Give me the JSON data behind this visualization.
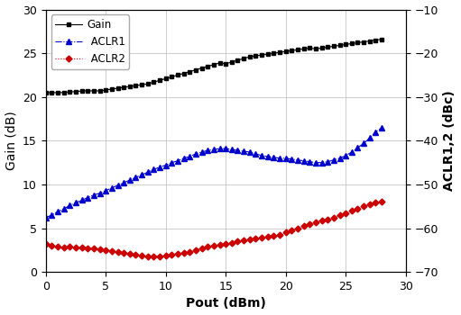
{
  "pout_gain": [
    0,
    0.5,
    1,
    1.5,
    2,
    2.5,
    3,
    3.5,
    4,
    4.5,
    5,
    5.5,
    6,
    6.5,
    7,
    7.5,
    8,
    8.5,
    9,
    9.5,
    10,
    10.5,
    11,
    11.5,
    12,
    12.5,
    13,
    13.5,
    14,
    14.5,
    15,
    15.5,
    16,
    16.5,
    17,
    17.5,
    18,
    18.5,
    19,
    19.5,
    20,
    20.5,
    21,
    21.5,
    22,
    22.5,
    23,
    23.5,
    24,
    24.5,
    25,
    25.5,
    26,
    26.5,
    27,
    27.5,
    28
  ],
  "gain": [
    20.5,
    20.5,
    20.5,
    20.5,
    20.6,
    20.6,
    20.7,
    20.7,
    20.7,
    20.7,
    20.8,
    20.9,
    21.0,
    21.1,
    21.2,
    21.3,
    21.4,
    21.5,
    21.7,
    21.9,
    22.1,
    22.3,
    22.5,
    22.7,
    22.9,
    23.1,
    23.3,
    23.5,
    23.7,
    23.9,
    23.8,
    24.0,
    24.2,
    24.4,
    24.6,
    24.7,
    24.8,
    24.9,
    25.0,
    25.1,
    25.2,
    25.3,
    25.4,
    25.5,
    25.6,
    25.5,
    25.6,
    25.7,
    25.8,
    25.9,
    26.0,
    26.1,
    26.2,
    26.3,
    26.4,
    26.5,
    26.6
  ],
  "pout_aclr1": [
    0,
    0.5,
    1,
    1.5,
    2,
    2.5,
    3,
    3.5,
    4,
    4.5,
    5,
    5.5,
    6,
    6.5,
    7,
    7.5,
    8,
    8.5,
    9,
    9.5,
    10,
    10.5,
    11,
    11.5,
    12,
    12.5,
    13,
    13.5,
    14,
    14.5,
    15,
    15.5,
    16,
    16.5,
    17,
    17.5,
    18,
    18.5,
    19,
    19.5,
    20,
    20.5,
    21,
    21.5,
    22,
    22.5,
    23,
    23.5,
    24,
    24.5,
    25,
    25.5,
    26,
    26.5,
    27,
    27.5,
    28
  ],
  "aclr1": [
    6.2,
    6.5,
    6.9,
    7.2,
    7.6,
    7.9,
    8.2,
    8.5,
    8.8,
    9.0,
    9.3,
    9.6,
    9.9,
    10.2,
    10.5,
    10.8,
    11.1,
    11.4,
    11.7,
    12.0,
    12.2,
    12.5,
    12.7,
    13.0,
    13.2,
    13.5,
    13.7,
    13.9,
    14.0,
    14.1,
    14.1,
    14.0,
    13.9,
    13.8,
    13.7,
    13.5,
    13.3,
    13.2,
    13.1,
    13.0,
    13.0,
    12.9,
    12.8,
    12.7,
    12.6,
    12.5,
    12.5,
    12.6,
    12.8,
    13.0,
    13.3,
    13.7,
    14.2,
    14.7,
    15.3,
    16.0,
    16.5
  ],
  "pout_aclr2": [
    0,
    0.5,
    1,
    1.5,
    2,
    2.5,
    3,
    3.5,
    4,
    4.5,
    5,
    5.5,
    6,
    6.5,
    7,
    7.5,
    8,
    8.5,
    9,
    9.5,
    10,
    10.5,
    11,
    11.5,
    12,
    12.5,
    13,
    13.5,
    14,
    14.5,
    15,
    15.5,
    16,
    16.5,
    17,
    17.5,
    18,
    18.5,
    19,
    19.5,
    20,
    20.5,
    21,
    21.5,
    22,
    22.5,
    23,
    23.5,
    24,
    24.5,
    25,
    25.5,
    26,
    26.5,
    27,
    27.5,
    28
  ],
  "aclr2": [
    3.2,
    3.0,
    2.9,
    2.8,
    2.9,
    2.8,
    2.8,
    2.7,
    2.7,
    2.6,
    2.5,
    2.4,
    2.3,
    2.2,
    2.1,
    2.0,
    1.9,
    1.8,
    1.8,
    1.8,
    1.9,
    2.0,
    2.1,
    2.2,
    2.3,
    2.5,
    2.7,
    2.9,
    3.0,
    3.1,
    3.2,
    3.3,
    3.5,
    3.6,
    3.7,
    3.8,
    3.9,
    4.0,
    4.1,
    4.2,
    4.5,
    4.8,
    5.0,
    5.3,
    5.5,
    5.7,
    5.9,
    6.0,
    6.2,
    6.5,
    6.7,
    7.0,
    7.2,
    7.5,
    7.7,
    7.9,
    8.0
  ],
  "gain_color": "#000000",
  "aclr1_color": "#0000cc",
  "aclr2_color": "#cc0000",
  "xlim": [
    0,
    30
  ],
  "ylim_left": [
    0,
    30
  ],
  "ylim_right": [
    -70,
    -10
  ],
  "xlabel": "Pout (dBm)",
  "ylabel_left": "Gain (dB)",
  "ylabel_right": "ACLR1,2 (dBc)",
  "xticks": [
    0,
    5,
    10,
    15,
    20,
    25,
    30
  ],
  "yticks_left": [
    0,
    5,
    10,
    15,
    20,
    25,
    30
  ],
  "yticks_right": [
    -70,
    -60,
    -50,
    -40,
    -30,
    -20,
    -10
  ],
  "legend_gain": "Gain",
  "legend_aclr1": " ACLR1",
  "legend_aclr2": " ACLR2"
}
